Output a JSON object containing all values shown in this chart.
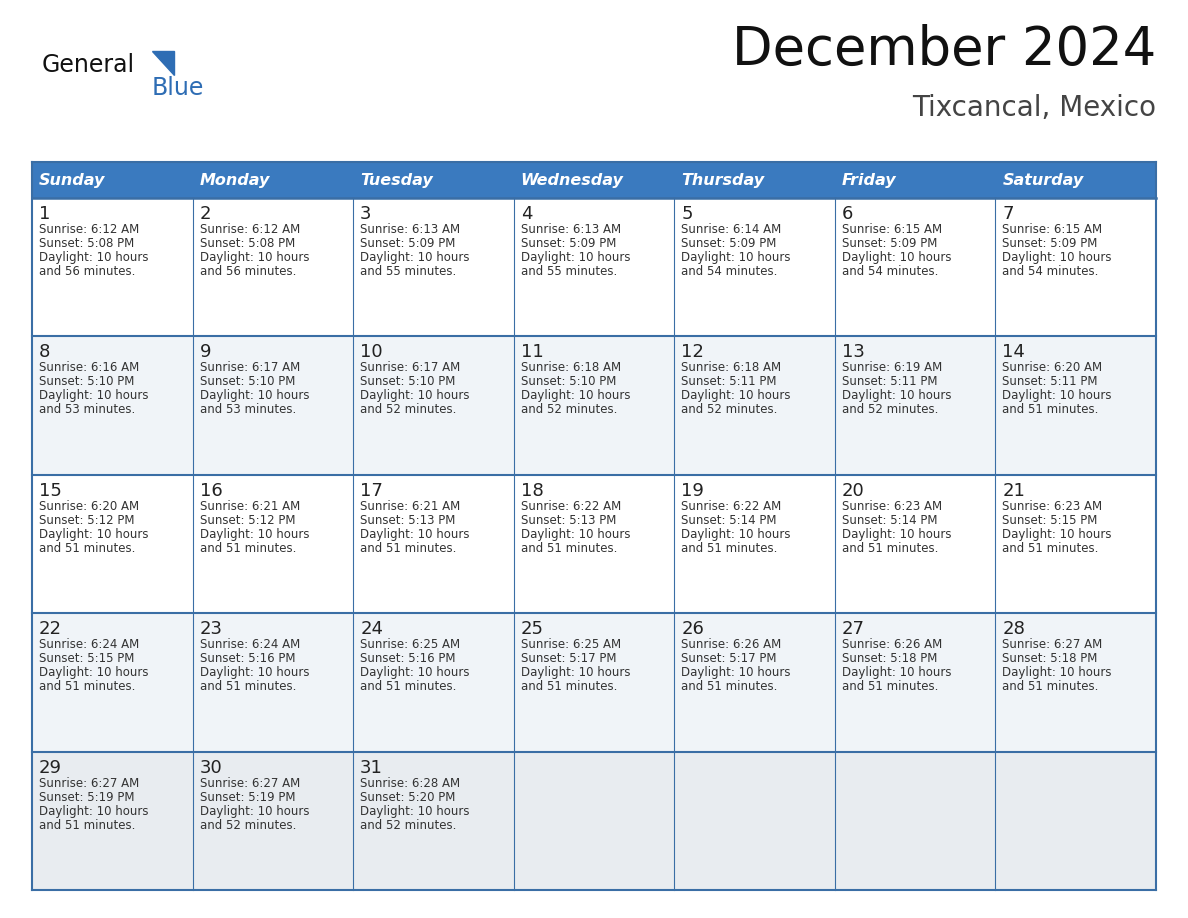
{
  "title": "December 2024",
  "subtitle": "Tixcancal, Mexico",
  "days_of_week": [
    "Sunday",
    "Monday",
    "Tuesday",
    "Wednesday",
    "Thursday",
    "Friday",
    "Saturday"
  ],
  "header_bg": "#3a7abf",
  "header_text": "#FFFFFF",
  "cell_bg_odd": "#FFFFFF",
  "cell_bg_even": "#f0f4f8",
  "last_row_bg": "#e8ecf0",
  "day_number_color": "#222222",
  "content_color": "#333333",
  "row_border_color": "#3a6ea5",
  "grid_color": "#3a7abf",
  "title_color": "#111111",
  "subtitle_color": "#444444",
  "logo_general_color": "#111111",
  "logo_blue_color": "#2E6DB4",
  "weeks": [
    [
      {
        "day": 1,
        "sunrise": "6:12 AM",
        "sunset": "5:08 PM",
        "daylight_hours": 10,
        "daylight_mins": "56 minutes."
      },
      {
        "day": 2,
        "sunrise": "6:12 AM",
        "sunset": "5:08 PM",
        "daylight_hours": 10,
        "daylight_mins": "56 minutes."
      },
      {
        "day": 3,
        "sunrise": "6:13 AM",
        "sunset": "5:09 PM",
        "daylight_hours": 10,
        "daylight_mins": "55 minutes."
      },
      {
        "day": 4,
        "sunrise": "6:13 AM",
        "sunset": "5:09 PM",
        "daylight_hours": 10,
        "daylight_mins": "55 minutes."
      },
      {
        "day": 5,
        "sunrise": "6:14 AM",
        "sunset": "5:09 PM",
        "daylight_hours": 10,
        "daylight_mins": "54 minutes."
      },
      {
        "day": 6,
        "sunrise": "6:15 AM",
        "sunset": "5:09 PM",
        "daylight_hours": 10,
        "daylight_mins": "54 minutes."
      },
      {
        "day": 7,
        "sunrise": "6:15 AM",
        "sunset": "5:09 PM",
        "daylight_hours": 10,
        "daylight_mins": "54 minutes."
      }
    ],
    [
      {
        "day": 8,
        "sunrise": "6:16 AM",
        "sunset": "5:10 PM",
        "daylight_hours": 10,
        "daylight_mins": "53 minutes."
      },
      {
        "day": 9,
        "sunrise": "6:17 AM",
        "sunset": "5:10 PM",
        "daylight_hours": 10,
        "daylight_mins": "53 minutes."
      },
      {
        "day": 10,
        "sunrise": "6:17 AM",
        "sunset": "5:10 PM",
        "daylight_hours": 10,
        "daylight_mins": "52 minutes."
      },
      {
        "day": 11,
        "sunrise": "6:18 AM",
        "sunset": "5:10 PM",
        "daylight_hours": 10,
        "daylight_mins": "52 minutes."
      },
      {
        "day": 12,
        "sunrise": "6:18 AM",
        "sunset": "5:11 PM",
        "daylight_hours": 10,
        "daylight_mins": "52 minutes."
      },
      {
        "day": 13,
        "sunrise": "6:19 AM",
        "sunset": "5:11 PM",
        "daylight_hours": 10,
        "daylight_mins": "52 minutes."
      },
      {
        "day": 14,
        "sunrise": "6:20 AM",
        "sunset": "5:11 PM",
        "daylight_hours": 10,
        "daylight_mins": "51 minutes."
      }
    ],
    [
      {
        "day": 15,
        "sunrise": "6:20 AM",
        "sunset": "5:12 PM",
        "daylight_hours": 10,
        "daylight_mins": "51 minutes."
      },
      {
        "day": 16,
        "sunrise": "6:21 AM",
        "sunset": "5:12 PM",
        "daylight_hours": 10,
        "daylight_mins": "51 minutes."
      },
      {
        "day": 17,
        "sunrise": "6:21 AM",
        "sunset": "5:13 PM",
        "daylight_hours": 10,
        "daylight_mins": "51 minutes."
      },
      {
        "day": 18,
        "sunrise": "6:22 AM",
        "sunset": "5:13 PM",
        "daylight_hours": 10,
        "daylight_mins": "51 minutes."
      },
      {
        "day": 19,
        "sunrise": "6:22 AM",
        "sunset": "5:14 PM",
        "daylight_hours": 10,
        "daylight_mins": "51 minutes."
      },
      {
        "day": 20,
        "sunrise": "6:23 AM",
        "sunset": "5:14 PM",
        "daylight_hours": 10,
        "daylight_mins": "51 minutes."
      },
      {
        "day": 21,
        "sunrise": "6:23 AM",
        "sunset": "5:15 PM",
        "daylight_hours": 10,
        "daylight_mins": "51 minutes."
      }
    ],
    [
      {
        "day": 22,
        "sunrise": "6:24 AM",
        "sunset": "5:15 PM",
        "daylight_hours": 10,
        "daylight_mins": "51 minutes."
      },
      {
        "day": 23,
        "sunrise": "6:24 AM",
        "sunset": "5:16 PM",
        "daylight_hours": 10,
        "daylight_mins": "51 minutes."
      },
      {
        "day": 24,
        "sunrise": "6:25 AM",
        "sunset": "5:16 PM",
        "daylight_hours": 10,
        "daylight_mins": "51 minutes."
      },
      {
        "day": 25,
        "sunrise": "6:25 AM",
        "sunset": "5:17 PM",
        "daylight_hours": 10,
        "daylight_mins": "51 minutes."
      },
      {
        "day": 26,
        "sunrise": "6:26 AM",
        "sunset": "5:17 PM",
        "daylight_hours": 10,
        "daylight_mins": "51 minutes."
      },
      {
        "day": 27,
        "sunrise": "6:26 AM",
        "sunset": "5:18 PM",
        "daylight_hours": 10,
        "daylight_mins": "51 minutes."
      },
      {
        "day": 28,
        "sunrise": "6:27 AM",
        "sunset": "5:18 PM",
        "daylight_hours": 10,
        "daylight_mins": "51 minutes."
      }
    ],
    [
      {
        "day": 29,
        "sunrise": "6:27 AM",
        "sunset": "5:19 PM",
        "daylight_hours": 10,
        "daylight_mins": "51 minutes."
      },
      {
        "day": 30,
        "sunrise": "6:27 AM",
        "sunset": "5:19 PM",
        "daylight_hours": 10,
        "daylight_mins": "52 minutes."
      },
      {
        "day": 31,
        "sunrise": "6:28 AM",
        "sunset": "5:20 PM",
        "daylight_hours": 10,
        "daylight_mins": "52 minutes."
      },
      null,
      null,
      null,
      null
    ]
  ]
}
